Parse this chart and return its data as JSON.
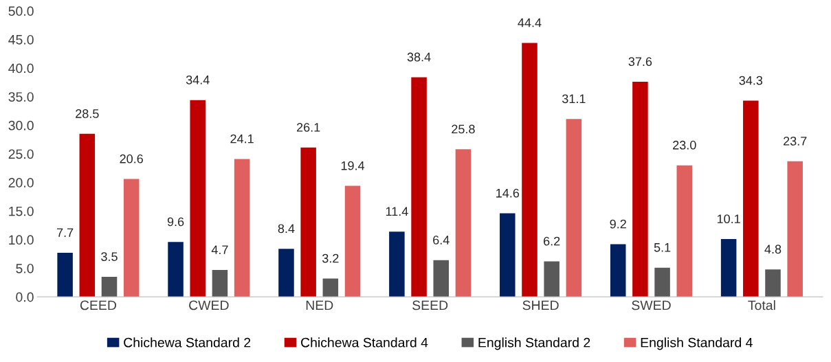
{
  "chart_data": {
    "type": "bar",
    "categories": [
      "CEED",
      "CWED",
      "NED",
      "SEED",
      "SHED",
      "SWED",
      "Total"
    ],
    "series": [
      {
        "name": "Chichewa Standard 2",
        "color": "#002060",
        "values": [
          7.7,
          9.6,
          8.4,
          11.4,
          14.6,
          9.2,
          10.1
        ],
        "value_labels": [
          "7.7",
          "9.6",
          "8.4",
          "11.4",
          "14.6",
          "9.2",
          "10.1"
        ]
      },
      {
        "name": "Chichewa Standard 4",
        "color": "#c00000",
        "values": [
          28.5,
          34.4,
          26.1,
          38.4,
          44.4,
          37.6,
          34.3
        ],
        "value_labels": [
          "28.5",
          "34.4",
          "26.1",
          "38.4",
          "44.4",
          "37.6",
          "34.3"
        ]
      },
      {
        "name": "English Standard 2",
        "color": "#595959",
        "values": [
          3.5,
          4.7,
          3.2,
          6.4,
          6.2,
          5.1,
          4.8
        ],
        "value_labels": [
          "3.5",
          "4.7",
          "3.2",
          "6.4",
          "6.2",
          "5.1",
          "4.8"
        ]
      },
      {
        "name": "English Standard 4",
        "color": "#e06060",
        "values": [
          20.6,
          24.1,
          19.4,
          25.8,
          31.1,
          23.0,
          23.7
        ],
        "value_labels": [
          "20.6",
          "24.1",
          "19.4",
          "25.8",
          "31.1",
          "23.0",
          "23.7"
        ]
      }
    ],
    "ylim": [
      0,
      50
    ],
    "yticks": [
      {
        "value": 0,
        "label": "0.0"
      },
      {
        "value": 5,
        "label": "5.0"
      },
      {
        "value": 10,
        "label": "10.0"
      },
      {
        "value": 15,
        "label": "15.0"
      },
      {
        "value": 20,
        "label": "20.0"
      },
      {
        "value": 25,
        "label": "25.0"
      },
      {
        "value": 30,
        "label": "30.0"
      },
      {
        "value": 35,
        "label": "35.0"
      },
      {
        "value": 40,
        "label": "40.0"
      },
      {
        "value": 45,
        "label": "45.0"
      },
      {
        "value": 50,
        "label": "50.0"
      }
    ],
    "grid": false,
    "legend": "bottom"
  }
}
